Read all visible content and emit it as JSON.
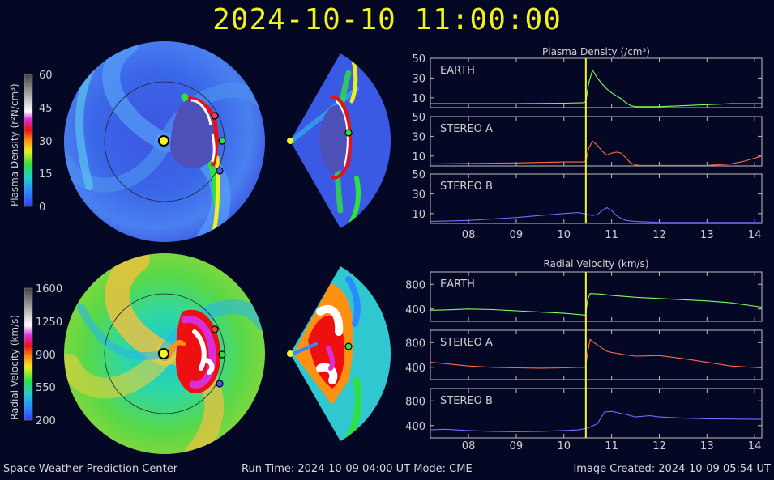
{
  "header": {
    "datetime": "2024-10-10 11:00:00"
  },
  "footer": {
    "org": "Space Weather Prediction Center",
    "run_time": "Run Time: 2024-10-09 04:00 UT   Mode: CME",
    "created": "Image Created: 2024-10-09 05:54 UT"
  },
  "colors": {
    "background": "#050824",
    "title": "#f2f21e",
    "earth_series": "#7cff5a",
    "stereo_a_series": "#ff6b4a",
    "stereo_b_series": "#6e6eff",
    "time_marker": "#f5f522"
  },
  "colorbars": {
    "density": {
      "label": "Plasma Density (r²N/cm³)",
      "ticks": [
        "60",
        "45",
        "30",
        "15",
        "0"
      ]
    },
    "velocity": {
      "label": "Radial Velocity (km/s)",
      "ticks": [
        "1600",
        "1250",
        "900",
        "550",
        "200"
      ]
    }
  },
  "chart_data": [
    {
      "type": "line",
      "title": "Plasma Density (/cm³)",
      "x_ticks": [
        "08",
        "09",
        "10",
        "11",
        "12",
        "13",
        "14"
      ],
      "xlim": [
        7.2,
        14.15
      ],
      "current_time": 10.46,
      "panels": [
        {
          "name": "EARTH",
          "ylim": [
            0,
            50
          ],
          "yticks": [
            "50",
            "30",
            "10"
          ],
          "x": [
            7.2,
            8,
            9,
            10,
            10.4,
            10.46,
            10.52,
            10.6,
            10.7,
            10.8,
            10.9,
            11.0,
            11.1,
            11.2,
            11.3,
            11.4,
            11.5,
            12,
            12.5,
            13,
            13.5,
            14.15
          ],
          "y": [
            4,
            4,
            4,
            4.5,
            5,
            6,
            25,
            38,
            30,
            24,
            19,
            15,
            12,
            9,
            5,
            2,
            1,
            1,
            2,
            3,
            4,
            4
          ]
        },
        {
          "name": "STEREO A",
          "ylim": [
            0,
            50
          ],
          "yticks": [
            "50",
            "30",
            "10"
          ],
          "x": [
            7.2,
            8,
            9,
            10,
            10.4,
            10.46,
            10.52,
            10.6,
            10.7,
            10.8,
            10.9,
            11.0,
            11.1,
            11.2,
            11.3,
            11.4,
            11.5,
            11.6,
            12,
            13,
            13.5,
            13.8,
            14.15
          ],
          "y": [
            2,
            2.5,
            3,
            4,
            4,
            5,
            18,
            25,
            21,
            15,
            11,
            13,
            14,
            13,
            8,
            3,
            1,
            0.5,
            0.5,
            0.5,
            2,
            5,
            10
          ]
        },
        {
          "name": "STEREO B",
          "ylim": [
            0,
            50
          ],
          "yticks": [
            "50",
            "30",
            "10"
          ],
          "x": [
            7.2,
            8,
            9,
            9.5,
            10,
            10.3,
            10.5,
            10.6,
            10.7,
            10.8,
            10.9,
            11.0,
            11.1,
            11.2,
            11.3,
            11.5,
            12,
            13,
            14.15
          ],
          "y": [
            2,
            3,
            6,
            8,
            10,
            11,
            9,
            8,
            9,
            13,
            16,
            13,
            8,
            5,
            3,
            2,
            1,
            1,
            1
          ]
        }
      ]
    },
    {
      "type": "line",
      "title": "Radial Velocity (km/s)",
      "x_ticks": [
        "08",
        "09",
        "10",
        "11",
        "12",
        "13",
        "14"
      ],
      "xlim": [
        7.2,
        14.15
      ],
      "current_time": 10.46,
      "panels": [
        {
          "name": "EARTH",
          "ylim": [
            200,
            1000
          ],
          "yticks": [
            "800",
            "400"
          ],
          "x": [
            7.2,
            7.5,
            8,
            8.5,
            9,
            9.5,
            10,
            10.3,
            10.45,
            10.5,
            10.55,
            10.8,
            11.0,
            11.5,
            12,
            12.5,
            13,
            13.5,
            14.15
          ],
          "y": [
            380,
            385,
            400,
            390,
            370,
            350,
            330,
            310,
            300,
            560,
            650,
            640,
            620,
            590,
            570,
            550,
            530,
            500,
            430
          ]
        },
        {
          "name": "STEREO A",
          "ylim": [
            200,
            1000
          ],
          "yticks": [
            "800",
            "400"
          ],
          "x": [
            7.2,
            7.5,
            8,
            8.5,
            9,
            9.5,
            10,
            10.3,
            10.45,
            10.5,
            10.55,
            10.7,
            10.9,
            11.0,
            11.3,
            11.5,
            12,
            12.5,
            13,
            13.5,
            14.15
          ],
          "y": [
            480,
            460,
            420,
            400,
            390,
            385,
            390,
            400,
            400,
            650,
            850,
            760,
            660,
            640,
            600,
            580,
            590,
            540,
            480,
            420,
            390
          ]
        },
        {
          "name": "STEREO B",
          "ylim": [
            200,
            1000
          ],
          "yticks": [
            "800",
            "400"
          ],
          "x": [
            7.2,
            7.5,
            8,
            8.5,
            9,
            9.5,
            10,
            10.3,
            10.5,
            10.7,
            10.85,
            11.0,
            11.3,
            11.5,
            11.8,
            12,
            12.5,
            13,
            14.15
          ],
          "y": [
            330,
            340,
            320,
            305,
            300,
            305,
            320,
            330,
            360,
            430,
            620,
            630,
            580,
            540,
            560,
            540,
            520,
            510,
            500
          ]
        }
      ]
    }
  ]
}
